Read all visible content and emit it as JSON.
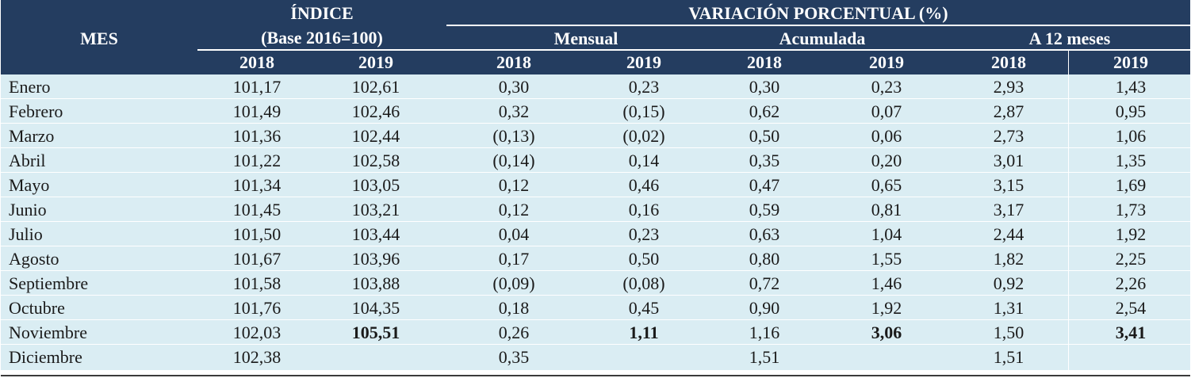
{
  "header": {
    "mes": "MES",
    "indice": "ÍNDICE",
    "indice_base": "(Base 2016=100)",
    "variacion": "VARIACIÓN PORCENTUAL (%)",
    "mensual": "Mensual",
    "acumulada": "Acumulada",
    "a12": "A 12 meses",
    "years": [
      "2018",
      "2019",
      "2018",
      "2019",
      "2018",
      "2019",
      "2018",
      "2019"
    ]
  },
  "rows": [
    {
      "mes": "Enero",
      "i2018": "101,17",
      "i2019": "102,61",
      "m2018": "0,30",
      "m2019": "0,23",
      "a2018": "0,30",
      "a2019": "0,23",
      "d2018": "2,93",
      "d2019": "1,43"
    },
    {
      "mes": "Febrero",
      "i2018": "101,49",
      "i2019": "102,46",
      "m2018": "0,32",
      "m2019": "(0,15)",
      "a2018": "0,62",
      "a2019": "0,07",
      "d2018": "2,87",
      "d2019": "0,95"
    },
    {
      "mes": "Marzo",
      "i2018": "101,36",
      "i2019": "102,44",
      "m2018": "(0,13)",
      "m2019": "(0,02)",
      "a2018": "0,50",
      "a2019": "0,06",
      "d2018": "2,73",
      "d2019": "1,06"
    },
    {
      "mes": "Abril",
      "i2018": "101,22",
      "i2019": "102,58",
      "m2018": "(0,14)",
      "m2019": "0,14",
      "a2018": "0,35",
      "a2019": "0,20",
      "d2018": "3,01",
      "d2019": "1,35"
    },
    {
      "mes": "Mayo",
      "i2018": "101,34",
      "i2019": "103,05",
      "m2018": "0,12",
      "m2019": "0,46",
      "a2018": "0,47",
      "a2019": "0,65",
      "d2018": "3,15",
      "d2019": "1,69"
    },
    {
      "mes": "Junio",
      "i2018": "101,45",
      "i2019": "103,21",
      "m2018": "0,12",
      "m2019": "0,16",
      "a2018": "0,59",
      "a2019": "0,81",
      "d2018": "3,17",
      "d2019": "1,73"
    },
    {
      "mes": "Julio",
      "i2018": "101,50",
      "i2019": "103,44",
      "m2018": "0,04",
      "m2019": "0,23",
      "a2018": "0,63",
      "a2019": "1,04",
      "d2018": "2,44",
      "d2019": "1,92"
    },
    {
      "mes": "Agosto",
      "i2018": "101,67",
      "i2019": "103,96",
      "m2018": "0,17",
      "m2019": "0,50",
      "a2018": "0,80",
      "a2019": "1,55",
      "d2018": "1,82",
      "d2019": "2,25"
    },
    {
      "mes": "Septiembre",
      "i2018": "101,58",
      "i2019": "103,88",
      "m2018": "(0,09)",
      "m2019": "(0,08)",
      "a2018": "0,72",
      "a2019": "1,46",
      "d2018": "0,92",
      "d2019": "2,26"
    },
    {
      "mes": "Octubre",
      "i2018": "101,76",
      "i2019": "104,35",
      "m2018": "0,18",
      "m2019": "0,45",
      "a2018": "0,90",
      "a2019": "1,92",
      "d2018": "1,31",
      "d2019": "2,54"
    },
    {
      "mes": "Noviembre",
      "i2018": "102,03",
      "i2019": "105,51",
      "m2018": "0,26",
      "m2019": "1,11",
      "a2018": "1,16",
      "a2019": "3,06",
      "d2018": "1,50",
      "d2019": "3,41",
      "bold2019": true
    },
    {
      "mes": "Diciembre",
      "i2018": "102,38",
      "i2019": "",
      "m2018": "0,35",
      "m2019": "",
      "a2018": "1,51",
      "a2019": "",
      "d2018": "1,51",
      "d2019": ""
    }
  ],
  "colors": {
    "header_bg": "#243d60",
    "row_bg": "#daedf3",
    "header_text": "#ffffff"
  }
}
